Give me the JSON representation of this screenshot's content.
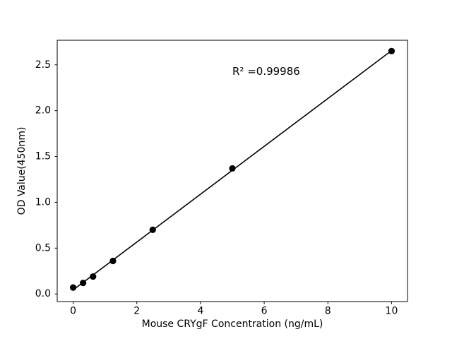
{
  "chart_data": {
    "type": "scatter",
    "title": "",
    "xlabel": "Mouse CRYgF Concentration (ng/mL)",
    "ylabel": "OD Value(450nm)",
    "x": [
      0,
      0.3125,
      0.625,
      1.25,
      2.5,
      5,
      10
    ],
    "y": [
      0.07,
      0.12,
      0.19,
      0.36,
      0.7,
      1.37,
      2.65
    ],
    "fit_line": {
      "x": [
        0,
        10
      ],
      "y": [
        0.044,
        2.655
      ]
    },
    "annotation": {
      "text": "R² =0.99986",
      "x": 5,
      "y": 2.38
    },
    "r_squared": 0.99986,
    "xlim": [
      -0.5,
      10.5
    ],
    "ylim": [
      -0.083,
      2.768
    ],
    "xticks": [
      0,
      2,
      4,
      6,
      8,
      10
    ],
    "xtick_labels": [
      "0",
      "2",
      "4",
      "6",
      "8",
      "10"
    ],
    "yticks": [
      0,
      0.5,
      1,
      1.5,
      2,
      2.5
    ],
    "ytick_labels": [
      "0.0",
      "0.5",
      "1.0",
      "1.5",
      "2.0",
      "2.5"
    ],
    "marker_color": "#000000",
    "line_color": "#000000",
    "axis_color": "#000000",
    "background_color": "#ffffff",
    "grid": false,
    "legend": null
  }
}
